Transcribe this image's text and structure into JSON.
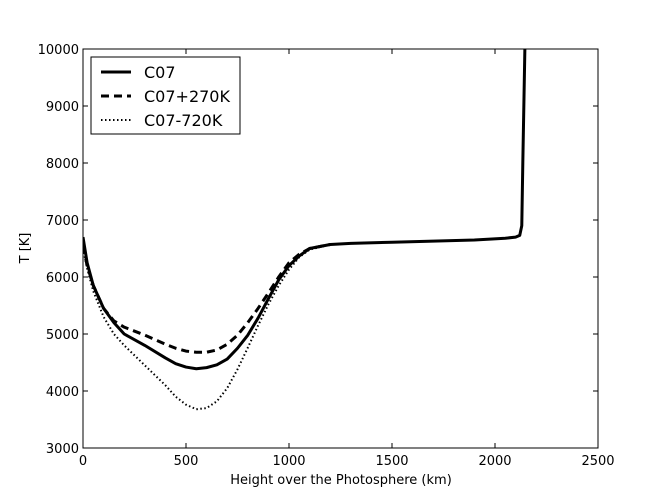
{
  "chart_data": {
    "type": "line",
    "xlabel": "Height over the Photosphere (km)",
    "ylabel": "T [K]",
    "xlim": [
      0,
      2500
    ],
    "ylim": [
      3000,
      10000
    ],
    "xticks": [
      0,
      500,
      1000,
      1500,
      2000,
      2500
    ],
    "yticks": [
      3000,
      4000,
      5000,
      6000,
      7000,
      8000,
      9000,
      10000
    ],
    "grid": false,
    "legend": {
      "placement": "top-left"
    },
    "series": [
      {
        "name": "C07",
        "style": "solid",
        "color": "#000000",
        "x": [
          0,
          20,
          50,
          100,
          150,
          200,
          300,
          400,
          450,
          500,
          550,
          600,
          650,
          700,
          750,
          800,
          850,
          900,
          950,
          1000,
          1050,
          1100,
          1200,
          1300,
          1500,
          1700,
          1900,
          2050,
          2100,
          2120,
          2130,
          2135,
          2140,
          2145
        ],
        "y": [
          6700,
          6250,
          5850,
          5450,
          5200,
          5000,
          4800,
          4580,
          4480,
          4420,
          4390,
          4410,
          4460,
          4560,
          4750,
          4980,
          5280,
          5620,
          5950,
          6200,
          6370,
          6500,
          6570,
          6590,
          6610,
          6630,
          6650,
          6680,
          6700,
          6730,
          6900,
          8000,
          9000,
          10000
        ]
      },
      {
        "name": "C07+270K",
        "style": "dashed",
        "color": "#000000",
        "x": [
          0,
          20,
          50,
          100,
          150,
          200,
          300,
          400,
          450,
          500,
          550,
          600,
          650,
          700,
          750,
          800,
          850,
          900,
          950,
          1000,
          1050,
          1100,
          1200
        ],
        "y": [
          6550,
          6200,
          5850,
          5450,
          5230,
          5120,
          4980,
          4820,
          4750,
          4700,
          4680,
          4680,
          4720,
          4820,
          4980,
          5200,
          5450,
          5720,
          6000,
          6250,
          6400,
          6500,
          6570
        ]
      },
      {
        "name": "C07-720K",
        "style": "dotted",
        "color": "#000000",
        "x": [
          0,
          20,
          50,
          100,
          150,
          200,
          300,
          400,
          450,
          500,
          550,
          600,
          650,
          700,
          750,
          800,
          850,
          900,
          950,
          1000,
          1050,
          1100,
          1200
        ],
        "y": [
          6500,
          6150,
          5750,
          5300,
          5000,
          4800,
          4450,
          4100,
          3900,
          3760,
          3680,
          3700,
          3820,
          4050,
          4380,
          4760,
          5150,
          5520,
          5850,
          6130,
          6350,
          6480,
          6570
        ]
      }
    ]
  }
}
